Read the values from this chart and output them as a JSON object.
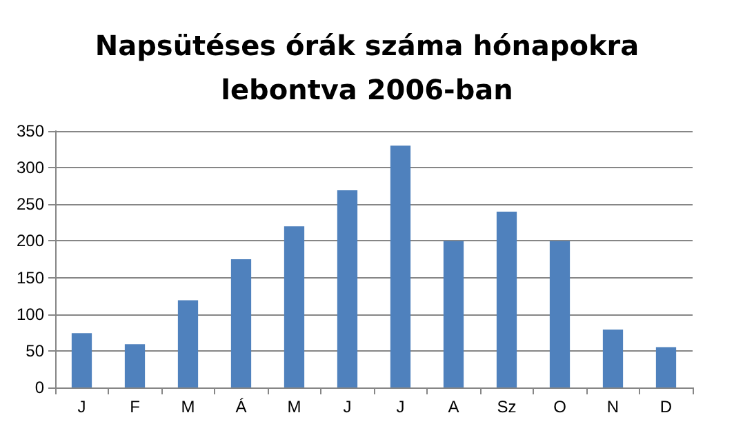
{
  "chart_data": {
    "type": "bar",
    "title": "Napsütéses órák száma hónapokra\nlebontva 2006-ban",
    "categories": [
      "J",
      "F",
      "M",
      "Á",
      "M",
      "J",
      "J",
      "A",
      "Sz",
      "O",
      "N",
      "D"
    ],
    "values": [
      74,
      59,
      119,
      175,
      220,
      269,
      330,
      200,
      240,
      200,
      79,
      55
    ],
    "color": "#4f81bd",
    "ylim": [
      0,
      350
    ],
    "yticks": [
      0,
      50,
      100,
      150,
      200,
      250,
      300,
      350
    ],
    "grid": "y"
  }
}
